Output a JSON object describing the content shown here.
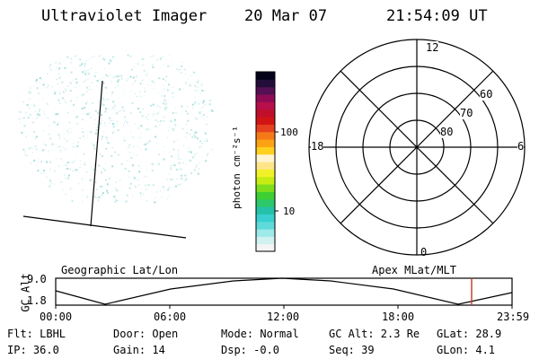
{
  "header": {
    "instrument": "Ultraviolet Imager",
    "date": "20 Mar 07",
    "time": "21:54:09 UT"
  },
  "colorbar": {
    "label": "photon cm⁻²s⁻¹",
    "ticks": [
      "100",
      "10"
    ],
    "colors": [
      "#f4f4f4",
      "#d2f1f1",
      "#9ee9e9",
      "#5fdada",
      "#38d0d0",
      "#24c2a8",
      "#2cc86a",
      "#3ecf32",
      "#7dde1e",
      "#c6ec13",
      "#f1f12a",
      "#ffe58a",
      "#fff4d0",
      "#ffd020",
      "#fca313",
      "#f57a17",
      "#e5401f",
      "#d11515",
      "#c00f2a",
      "#b70f4a",
      "#8f0b55",
      "#541052",
      "#220e38",
      "#05031a"
    ]
  },
  "polar": {
    "labels": {
      "top": "12",
      "bottom": "0",
      "left": "18",
      "right": "6"
    },
    "ring_labels": [
      "60",
      "70",
      "80"
    ]
  },
  "timeline": {
    "left_title": "Geographic Lat/Lon",
    "right_title": "Apex MLat/MLT",
    "ylabel": "GC Alt",
    "yticks": [
      "9.0",
      "1.8"
    ],
    "xticks": [
      "00:00",
      "06:00",
      "12:00",
      "18:00",
      "23:59"
    ],
    "marker_color": "#c0392b"
  },
  "info": {
    "filter": "Flt: LBHL",
    "ip": "IP: 36.0",
    "door": "Door: Open",
    "gain": "Gain: 14",
    "mode": "Mode: Normal",
    "dsp": "Dsp:   -0.0",
    "gc_alt": "GC Alt: 2.3 Re",
    "seq": "Seq: 39",
    "glat": "GLat:  28.9",
    "glon": "GLon:   4.1"
  }
}
